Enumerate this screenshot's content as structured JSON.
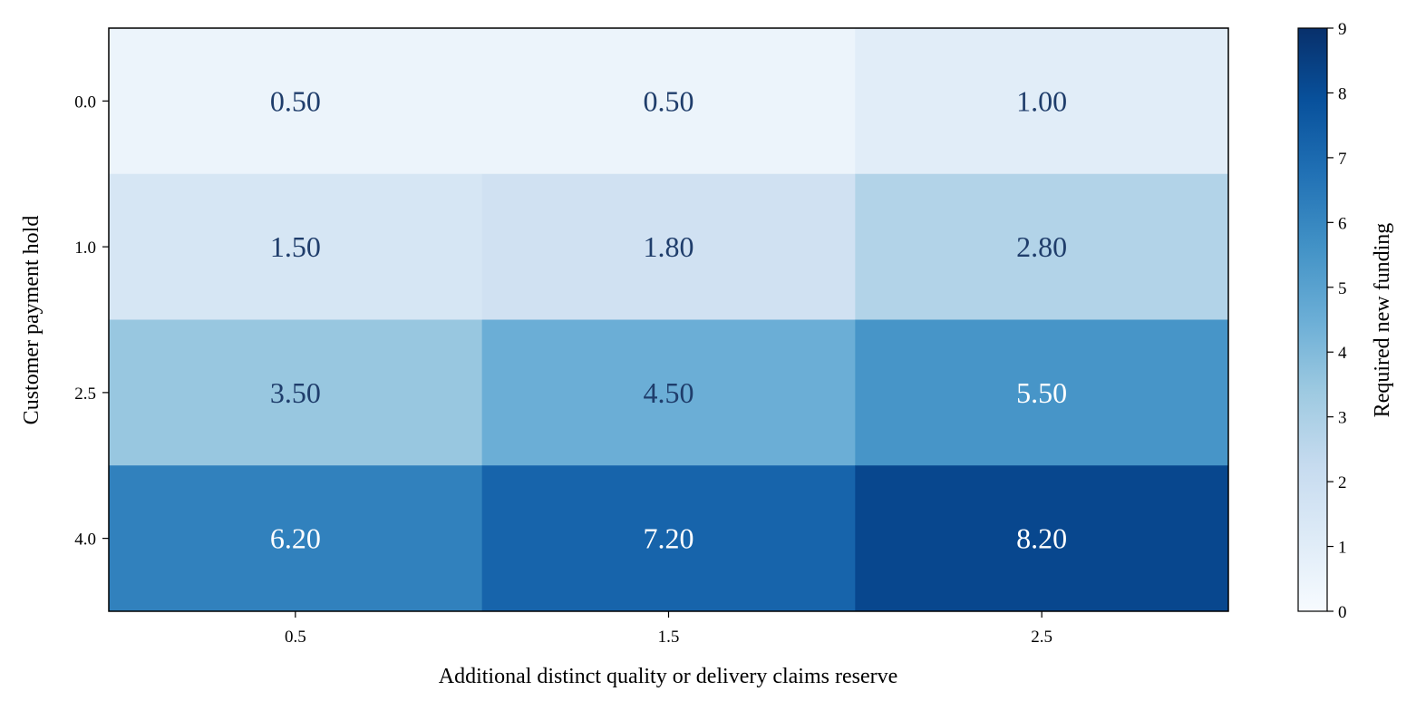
{
  "chart_data": {
    "type": "heatmap",
    "title": "",
    "xlabel": "Additional distinct quality or delivery claims reserve",
    "ylabel": "Customer payment hold",
    "x_categories": [
      "0.5",
      "1.5",
      "2.5"
    ],
    "y_categories": [
      "0.0",
      "1.0",
      "2.5",
      "4.0"
    ],
    "values": [
      [
        0.5,
        0.5,
        1.0
      ],
      [
        1.5,
        1.8,
        2.8
      ],
      [
        3.5,
        4.5,
        5.5
      ],
      [
        6.2,
        7.2,
        8.2
      ]
    ],
    "value_labels": [
      [
        "0.50",
        "0.50",
        "1.00"
      ],
      [
        "1.50",
        "1.80",
        "2.80"
      ],
      [
        "3.50",
        "4.50",
        "5.50"
      ],
      [
        "6.20",
        "7.20",
        "8.20"
      ]
    ],
    "colormap": "Blues",
    "colorbar": {
      "label": "Required new funding",
      "range": [
        0,
        9
      ],
      "ticks": [
        "0",
        "1",
        "2",
        "3",
        "4",
        "5",
        "6",
        "7",
        "8",
        "9"
      ]
    },
    "label_colors": {
      "dark": "#1f3d6b",
      "light": "#ffffff"
    }
  }
}
